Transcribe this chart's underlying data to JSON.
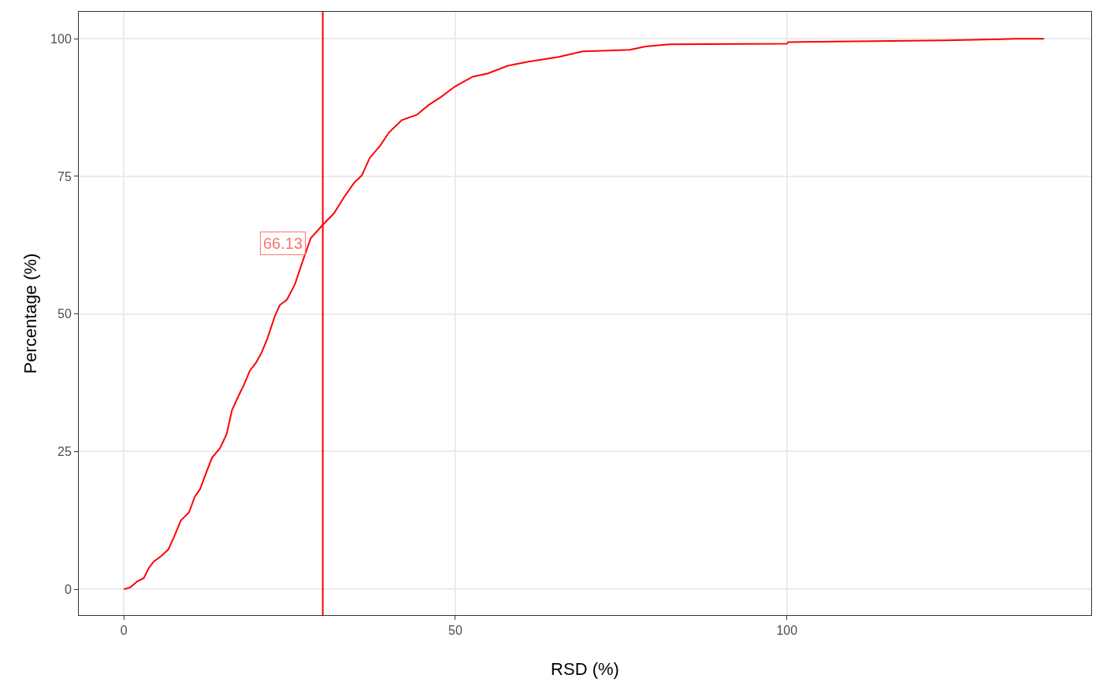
{
  "chart_data": {
    "type": "line",
    "xlabel": "RSD (%)",
    "ylabel": "Percentage (%)",
    "x": [
      0,
      0.95,
      2,
      3,
      3.8,
      4.5,
      5.6,
      6.7,
      7.6,
      8.6,
      9.8,
      10.7,
      11.5,
      12.4,
      13.3,
      14.5,
      15.5,
      16.3,
      17.4,
      18.1,
      19,
      19.9,
      20.7,
      21.6,
      22.8,
      23.5,
      24.6,
      25.8,
      27,
      28.2,
      30,
      31.7,
      33.2,
      34.7,
      35.9,
      37.1,
      38.6,
      40,
      41.9,
      44.2,
      46,
      47.8,
      49.9,
      52.6,
      54.9,
      57.9,
      60.9,
      65.6,
      69.2,
      76.3,
      78.7,
      82.3,
      100,
      100.2,
      123.9,
      134.4,
      138.8
    ],
    "series": [
      {
        "color": "#ff0000",
        "values": [
          0,
          0.3,
          1.4,
          2,
          3.9,
          5,
          6,
          7.2,
          9.6,
          12.5,
          13.9,
          16.8,
          18.2,
          21.1,
          23.9,
          25.6,
          28.2,
          32.5,
          35.4,
          37.1,
          39.7,
          41.1,
          42.8,
          45.4,
          49.7,
          51.6,
          52.6,
          55.4,
          59.7,
          63.8,
          66.2,
          68.3,
          71.2,
          73.8,
          75.2,
          78.4,
          80.5,
          83,
          85.2,
          86.2,
          88,
          89.4,
          91.3,
          93.1,
          93.7,
          95.1,
          95.8,
          96.7,
          97.7,
          98,
          98.6,
          99,
          99.1,
          99.4,
          99.7,
          100,
          100
        ]
      }
    ],
    "xlim": [
      -6.8,
      145.9
    ],
    "ylim": [
      -4.7,
      104.9
    ],
    "xticks": [
      0,
      50,
      100
    ],
    "yticks": [
      0,
      25,
      50,
      75,
      100
    ],
    "grid": true,
    "marker": "none",
    "line_style": "solid",
    "ref_lines": [
      {
        "axis": "x",
        "value": 30,
        "color": "#ff0000"
      }
    ],
    "annotations": [
      {
        "text": "66.13",
        "x": 30,
        "y": 66.13
      }
    ]
  }
}
